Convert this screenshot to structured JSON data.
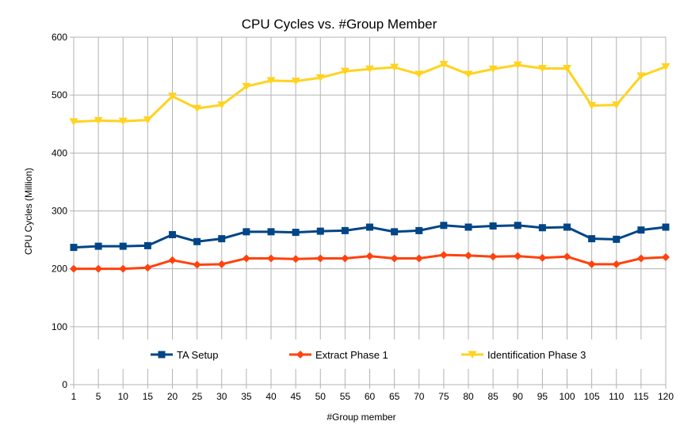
{
  "chart_data": {
    "type": "line",
    "title": "CPU Cycles vs. #Group Member",
    "xlabel": "#Group member",
    "ylabel": "CPU Cycles (Million)",
    "ylim": [
      0,
      600
    ],
    "yticks": [
      "0",
      "100",
      "200",
      "300",
      "400",
      "500",
      "600"
    ],
    "grid": true,
    "legend_position": "inside-bottom",
    "categories": [
      "1",
      "5",
      "10",
      "15",
      "20",
      "25",
      "30",
      "35",
      "40",
      "45",
      "50",
      "55",
      "60",
      "65",
      "70",
      "75",
      "80",
      "85",
      "90",
      "95",
      "100",
      "105",
      "110",
      "115",
      "120"
    ],
    "series": [
      {
        "name": "TA Setup",
        "color": "#004586",
        "marker": "square",
        "values": [
          237,
          239,
          239,
          240,
          259,
          247,
          252,
          264,
          264,
          263,
          265,
          266,
          272,
          264,
          266,
          275,
          272,
          274,
          275,
          271,
          272,
          252,
          251,
          267,
          272
        ]
      },
      {
        "name": "Extract Phase 1",
        "color": "#ff420e",
        "marker": "diamond",
        "values": [
          200,
          200,
          200,
          202,
          215,
          207,
          208,
          218,
          218,
          217,
          218,
          218,
          222,
          218,
          218,
          224,
          223,
          221,
          222,
          219,
          221,
          208,
          208,
          218,
          220
        ]
      },
      {
        "name": "Identification Phase 3",
        "color": "#ffd320",
        "marker": "triangle-down",
        "values": [
          454,
          456,
          455,
          457,
          498,
          477,
          483,
          515,
          525,
          524,
          530,
          541,
          545,
          548,
          536,
          553,
          536,
          545,
          552,
          546,
          546,
          482,
          483,
          533,
          549
        ]
      }
    ]
  }
}
